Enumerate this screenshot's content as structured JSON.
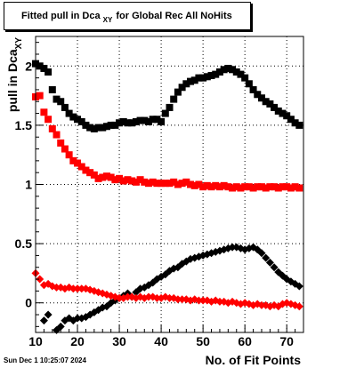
{
  "header": {
    "title_main": "Fitted pull in Dca",
    "title_sub": "XY",
    "title_rest": "for Global Rec All NoHits"
  },
  "footer": {
    "timestamp": "Sun Dec  1 10:25:07 2024"
  },
  "chart_data": {
    "type": "scatter",
    "title": "Fitted pull in Dca_XY for Global Rec All NoHits",
    "xlabel": "No. of Fit Points",
    "ylabel": "pull in Dca_XY",
    "xlim": [
      10,
      74
    ],
    "ylim": [
      -0.25,
      2.25
    ],
    "x_ticks": [
      10,
      20,
      30,
      40,
      50,
      60,
      70
    ],
    "y_ticks": [
      0,
      0.5,
      1,
      1.5,
      2
    ],
    "y_tick_labels": [
      "0",
      "0.5",
      "1",
      "1.5",
      "2"
    ],
    "grid": true,
    "legend": "none",
    "series": [
      {
        "color": "#000000",
        "marker": "square",
        "x": [
          10,
          11,
          12,
          13,
          14,
          15,
          16,
          17,
          18,
          19,
          20,
          21,
          22,
          23,
          24,
          25,
          26,
          27,
          28,
          29,
          30,
          31,
          32,
          33,
          34,
          35,
          36,
          37,
          38,
          39,
          40,
          41,
          42,
          43,
          44,
          45,
          46,
          47,
          48,
          49,
          50,
          51,
          52,
          53,
          54,
          55,
          56,
          57,
          58,
          59,
          60,
          61,
          62,
          63,
          64,
          65,
          66,
          67,
          68,
          69,
          70,
          71,
          72,
          73
        ],
        "y": [
          2.02,
          2.0,
          1.98,
          1.95,
          1.8,
          1.72,
          1.7,
          1.65,
          1.6,
          1.57,
          1.55,
          1.53,
          1.5,
          1.48,
          1.47,
          1.48,
          1.48,
          1.49,
          1.5,
          1.5,
          1.52,
          1.53,
          1.52,
          1.52,
          1.53,
          1.54,
          1.54,
          1.53,
          1.55,
          1.55,
          1.53,
          1.6,
          1.65,
          1.72,
          1.78,
          1.82,
          1.85,
          1.87,
          1.88,
          1.9,
          1.9,
          1.91,
          1.92,
          1.93,
          1.95,
          1.97,
          1.98,
          1.97,
          1.95,
          1.93,
          1.9,
          1.85,
          1.8,
          1.76,
          1.73,
          1.7,
          1.68,
          1.65,
          1.62,
          1.6,
          1.58,
          1.55,
          1.52,
          1.5
        ]
      },
      {
        "color": "#ff0000",
        "marker": "square",
        "x": [
          10,
          11,
          12,
          13,
          14,
          15,
          16,
          17,
          18,
          19,
          20,
          21,
          22,
          23,
          24,
          25,
          26,
          27,
          28,
          29,
          30,
          31,
          32,
          33,
          34,
          35,
          36,
          37,
          38,
          39,
          40,
          41,
          42,
          43,
          44,
          45,
          46,
          47,
          48,
          49,
          50,
          51,
          52,
          53,
          54,
          55,
          56,
          57,
          58,
          59,
          60,
          61,
          62,
          63,
          64,
          65,
          66,
          67,
          68,
          69,
          70,
          71,
          72,
          73
        ],
        "y": [
          1.74,
          1.75,
          1.61,
          1.55,
          1.47,
          1.42,
          1.35,
          1.3,
          1.25,
          1.2,
          1.18,
          1.15,
          1.12,
          1.1,
          1.08,
          1.05,
          1.06,
          1.07,
          1.06,
          1.04,
          1.05,
          1.03,
          1.04,
          1.03,
          1.02,
          1.04,
          1.02,
          1.01,
          1.02,
          1.01,
          1.01,
          1.01,
          1.01,
          1.02,
          1.0,
          1.01,
          1.02,
          1.0,
          0.99,
          1.0,
          0.98,
          0.99,
          0.98,
          0.99,
          0.98,
          0.99,
          0.98,
          0.97,
          0.98,
          0.97,
          0.98,
          0.98,
          0.97,
          0.98,
          0.98,
          0.97,
          0.98,
          0.98,
          0.97,
          0.98,
          0.98,
          0.97,
          0.98,
          0.97
        ]
      },
      {
        "color": "#000000",
        "marker": "diamond",
        "x": [
          10,
          11,
          12,
          13,
          14,
          15,
          16,
          17,
          18,
          19,
          20,
          21,
          22,
          23,
          24,
          25,
          26,
          27,
          28,
          29,
          30,
          31,
          32,
          33,
          34,
          35,
          36,
          37,
          38,
          39,
          40,
          41,
          42,
          43,
          44,
          45,
          46,
          47,
          48,
          49,
          50,
          51,
          52,
          53,
          54,
          55,
          56,
          57,
          58,
          59,
          60,
          61,
          62,
          63,
          64,
          65,
          66,
          67,
          68,
          69,
          70,
          71,
          72,
          73
        ],
        "y": [
          -0.38,
          -0.33,
          -0.15,
          -0.1,
          -0.28,
          -0.23,
          -0.2,
          -0.15,
          -0.13,
          -0.15,
          -0.13,
          -0.13,
          -0.12,
          -0.1,
          -0.08,
          -0.06,
          -0.04,
          -0.03,
          0.0,
          0.02,
          0.04,
          0.06,
          0.08,
          0.05,
          0.09,
          0.12,
          0.13,
          0.15,
          0.17,
          0.2,
          0.22,
          0.24,
          0.27,
          0.29,
          0.3,
          0.33,
          0.35,
          0.37,
          0.38,
          0.39,
          0.4,
          0.41,
          0.42,
          0.43,
          0.44,
          0.45,
          0.46,
          0.47,
          0.47,
          0.46,
          0.45,
          0.46,
          0.47,
          0.45,
          0.42,
          0.38,
          0.34,
          0.3,
          0.26,
          0.23,
          0.2,
          0.18,
          0.16,
          0.14
        ]
      },
      {
        "color": "#ff0000",
        "marker": "diamond",
        "x": [
          10,
          11,
          12,
          13,
          14,
          15,
          16,
          17,
          18,
          19,
          20,
          21,
          22,
          23,
          24,
          25,
          26,
          27,
          28,
          29,
          30,
          31,
          32,
          33,
          34,
          35,
          36,
          37,
          38,
          39,
          40,
          41,
          42,
          43,
          44,
          45,
          46,
          47,
          48,
          49,
          50,
          51,
          52,
          53,
          54,
          55,
          56,
          57,
          58,
          59,
          60,
          61,
          62,
          63,
          64,
          65,
          66,
          67,
          68,
          69,
          70,
          71,
          72,
          73
        ],
        "y": [
          0.25,
          0.2,
          0.15,
          0.16,
          0.14,
          0.13,
          0.13,
          0.12,
          0.13,
          0.12,
          0.12,
          0.12,
          0.12,
          0.11,
          0.1,
          0.09,
          0.08,
          0.07,
          0.06,
          0.05,
          0.04,
          0.04,
          0.05,
          0.05,
          0.04,
          0.05,
          0.04,
          0.05,
          0.05,
          0.04,
          0.04,
          0.05,
          0.04,
          0.04,
          0.03,
          0.03,
          0.03,
          0.02,
          0.03,
          0.02,
          0.02,
          0.02,
          0.01,
          0.02,
          0.01,
          0.01,
          0.0,
          0.01,
          0.0,
          -0.01,
          0.0,
          -0.01,
          -0.02,
          -0.01,
          -0.02,
          -0.02,
          -0.03,
          -0.02,
          -0.03,
          -0.01,
          0.0,
          -0.01,
          -0.02,
          -0.03
        ]
      }
    ]
  }
}
